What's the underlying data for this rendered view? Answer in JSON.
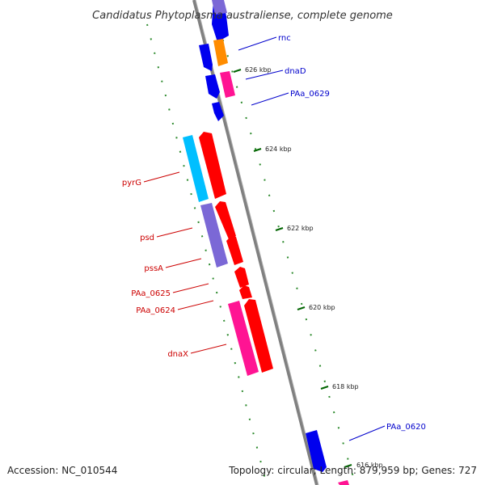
{
  "title": "Candidatus Phytoplasma australiense, complete genome",
  "footer": {
    "accession": "Accession: NC_010544",
    "summary": "Topology: circular; Length: 879,959 bp; Genes: 727"
  },
  "ticks": [
    {
      "label": "626 kbp",
      "pos": 626
    },
    {
      "label": "624 kbp",
      "pos": 624
    },
    {
      "label": "622 kbp",
      "pos": 622
    },
    {
      "label": "620 kbp",
      "pos": 620
    },
    {
      "label": "618 kbp",
      "pos": 618
    },
    {
      "label": "616 kbp",
      "pos": 616
    }
  ],
  "genes_forward": [
    {
      "label": "rnc",
      "color": "#0000cc"
    },
    {
      "label": "dnaD",
      "color": "#0000cc"
    },
    {
      "label": "PAa_0629",
      "color": "#0000cc"
    },
    {
      "label": "PAa_0620",
      "color": "#0000cc"
    }
  ],
  "genes_reverse": [
    {
      "label": "pyrG",
      "color": "#cc0000"
    },
    {
      "label": "psd",
      "color": "#cc0000"
    },
    {
      "label": "pssA",
      "color": "#cc0000"
    },
    {
      "label": "PAa_0625",
      "color": "#cc0000"
    },
    {
      "label": "PAa_0624",
      "color": "#cc0000"
    },
    {
      "label": "dnaX",
      "color": "#cc0000"
    }
  ],
  "colors": {
    "backbone": "#808080",
    "forward_strand": "#0000ee",
    "reverse_strand": "#ff0000",
    "cog_purple": "#7b68d6",
    "cog_orange": "#ff8c00",
    "cog_magenta": "#ff1493",
    "cog_cyan": "#00bfff",
    "tick_green": "#006400"
  }
}
